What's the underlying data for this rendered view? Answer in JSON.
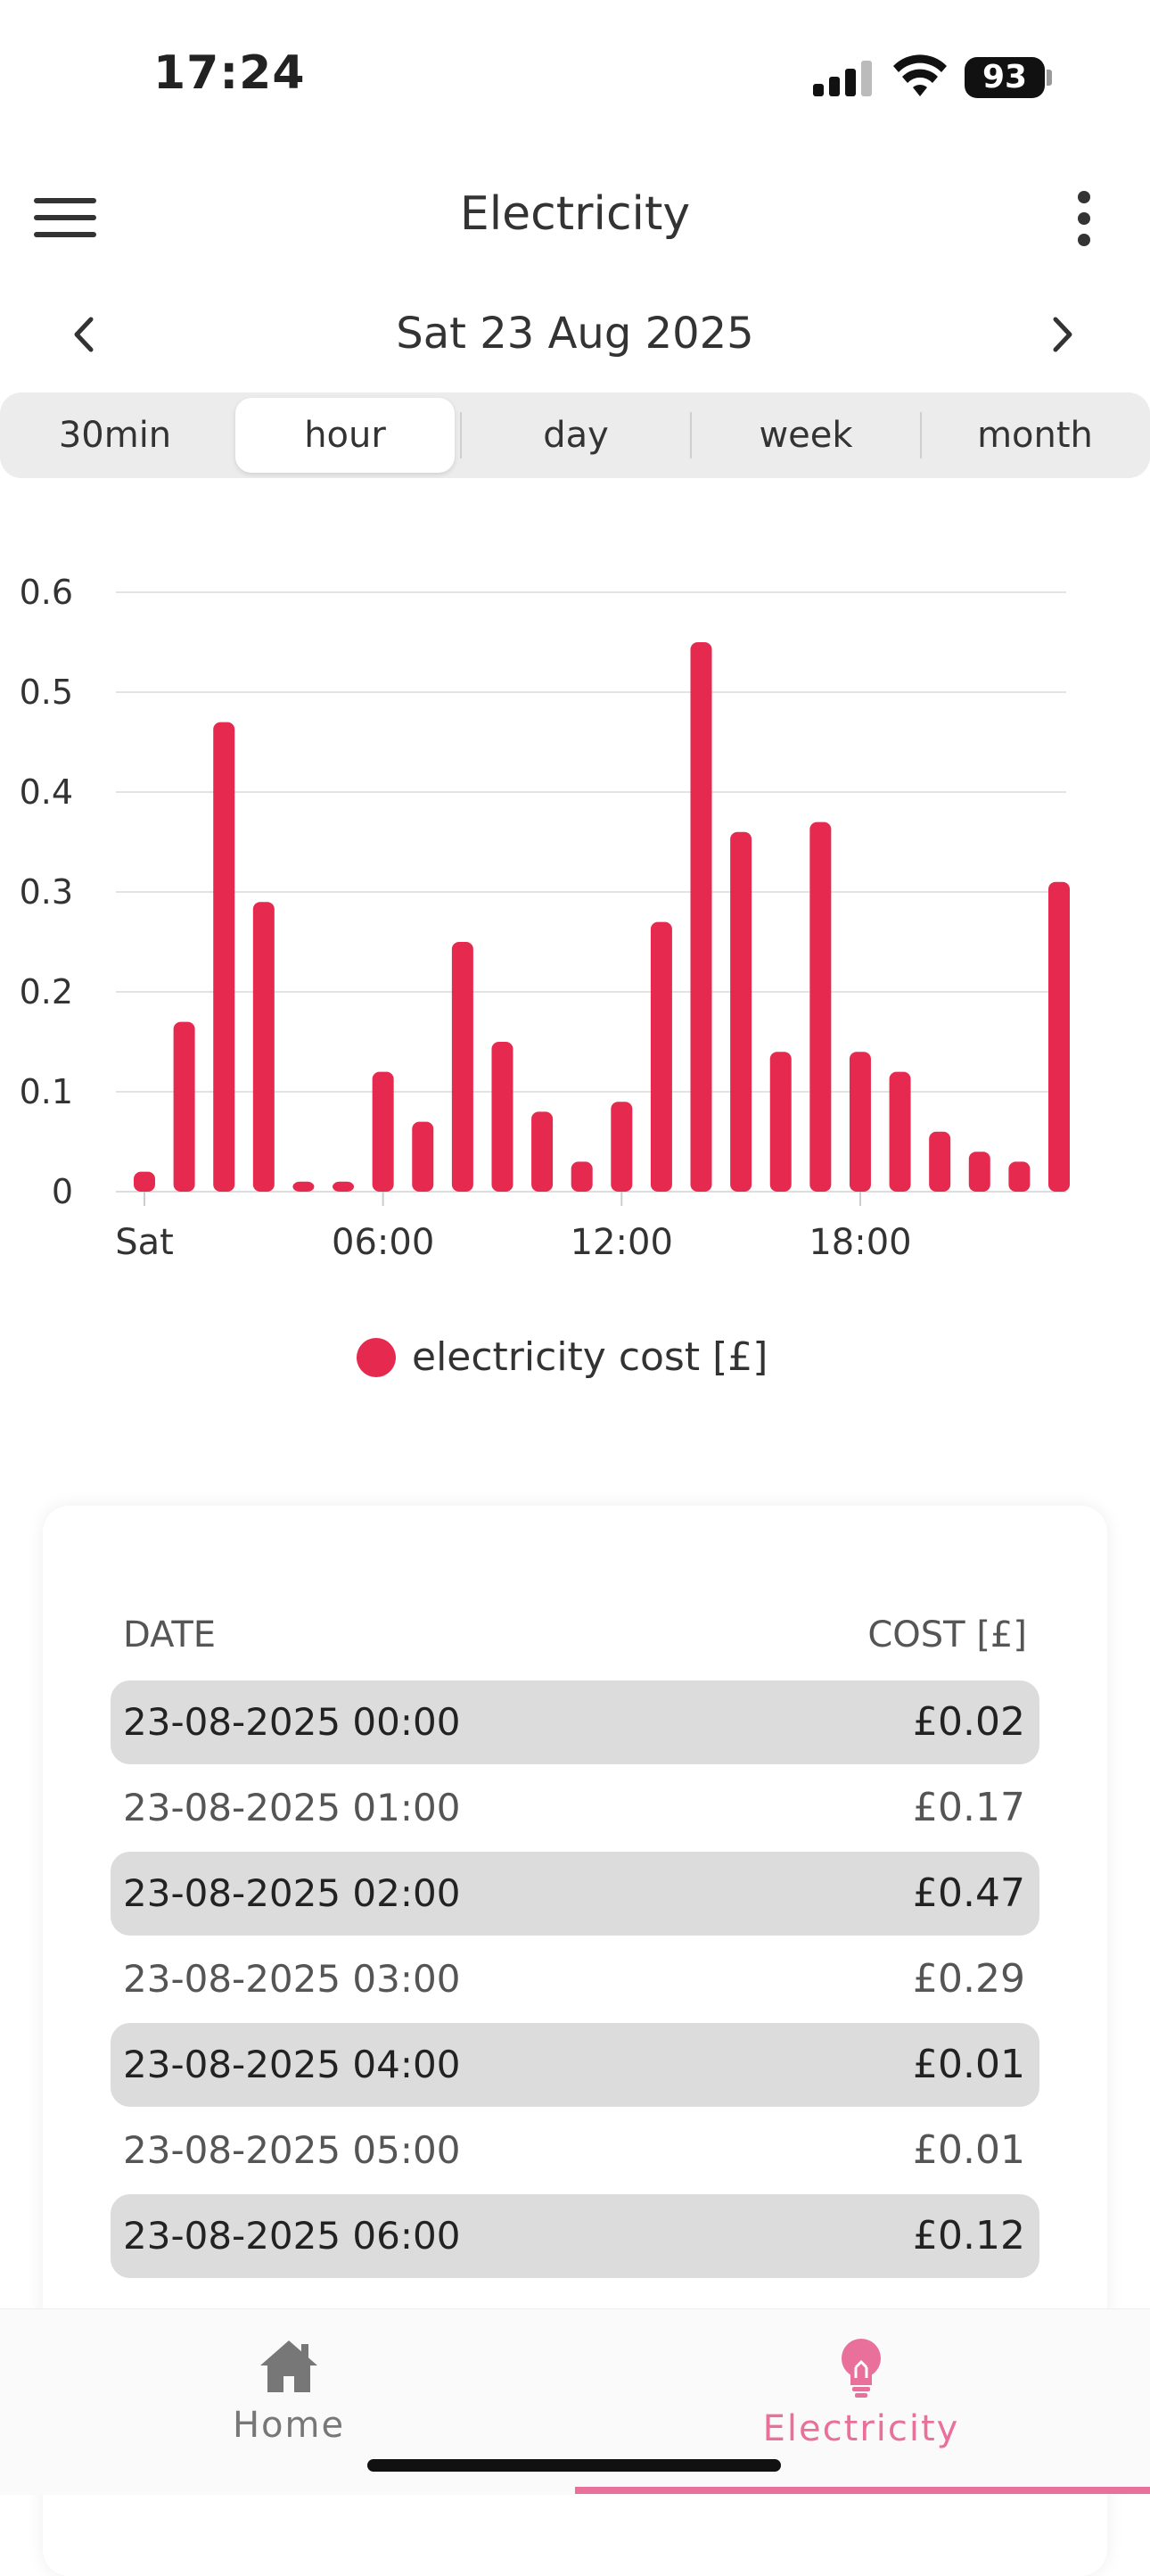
{
  "status_bar": {
    "time": "17:24",
    "battery": "93"
  },
  "header": {
    "title": "Electricity"
  },
  "date_nav": {
    "label": "Sat 23 Aug 2025"
  },
  "segments": [
    {
      "label": "30min",
      "active": false
    },
    {
      "label": "hour",
      "active": true
    },
    {
      "label": "day",
      "active": false
    },
    {
      "label": "week",
      "active": false
    },
    {
      "label": "month",
      "active": false
    }
  ],
  "chart_data": {
    "type": "bar",
    "x": [
      0,
      1,
      2,
      3,
      4,
      5,
      6,
      7,
      8,
      9,
      10,
      11,
      12,
      13,
      14,
      15,
      16,
      17,
      18,
      19,
      20,
      21,
      22,
      23
    ],
    "x_tick_labels": [
      {
        "at": 0,
        "label": "Sat"
      },
      {
        "at": 6,
        "label": "06:00"
      },
      {
        "at": 12,
        "label": "12:00"
      },
      {
        "at": 18,
        "label": "18:00"
      }
    ],
    "series": [
      {
        "name": "electricity cost [£]",
        "color": "#e62a4f",
        "values": [
          0.02,
          0.17,
          0.47,
          0.29,
          0.01,
          0.01,
          0.12,
          0.07,
          0.25,
          0.15,
          0.08,
          0.03,
          0.09,
          0.27,
          0.55,
          0.36,
          0.14,
          0.37,
          0.14,
          0.12,
          0.06,
          0.04,
          0.03,
          0.31
        ]
      }
    ],
    "yticks": [
      "0",
      "0.1",
      "0.2",
      "0.3",
      "0.4",
      "0.5",
      "0.6"
    ],
    "ylim": [
      0,
      0.6
    ],
    "grid": true,
    "legend": "bottom"
  },
  "table": {
    "headers": {
      "date": "DATE",
      "cost": "COST [£]"
    },
    "rows": [
      {
        "date": "23-08-2025 00:00",
        "cost": "£0.02"
      },
      {
        "date": "23-08-2025 01:00",
        "cost": "£0.17"
      },
      {
        "date": "23-08-2025 02:00",
        "cost": "£0.47"
      },
      {
        "date": "23-08-2025 03:00",
        "cost": "£0.29"
      },
      {
        "date": "23-08-2025 04:00",
        "cost": "£0.01"
      },
      {
        "date": "23-08-2025 05:00",
        "cost": "£0.01"
      },
      {
        "date": "23-08-2025 06:00",
        "cost": "£0.12"
      }
    ]
  },
  "tabbar": {
    "home": {
      "label": "Home",
      "icon": "home-icon",
      "color": "#777777"
    },
    "electricity": {
      "label": "Electricity",
      "icon": "lightbulb-icon",
      "color": "#e8709a"
    }
  }
}
